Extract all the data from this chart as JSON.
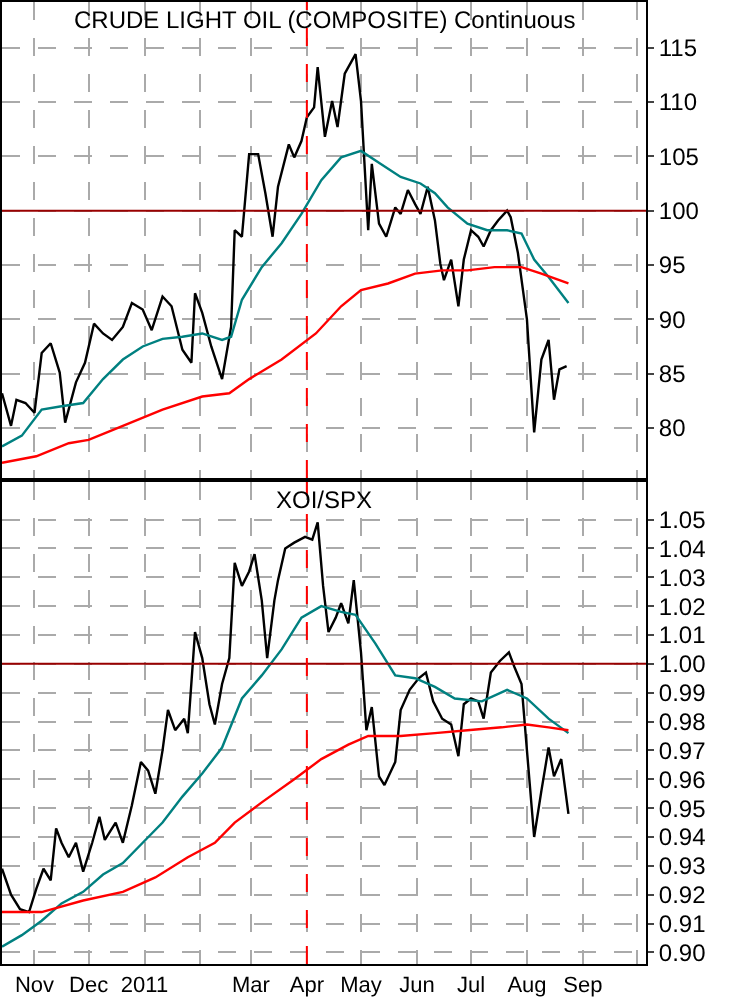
{
  "chart_data": [
    {
      "type": "line",
      "title": "CRUDE LIGHT OIL (COMPOSITE) Continuous",
      "xlim": [
        "2010-10-14",
        "2011-10-06"
      ],
      "ylim": [
        75.4,
        119.2
      ],
      "yticks": [
        80,
        85,
        90,
        95,
        100,
        105,
        110,
        115
      ],
      "xticks": [
        {
          "value": "2010-11-01",
          "label": null
        },
        {
          "value": "2010-12-01",
          "label": null
        },
        {
          "value": "2011-01-01",
          "label": null
        },
        {
          "value": "2011-02-01",
          "label": null
        },
        {
          "value": "2011-03-01",
          "label": null
        },
        {
          "value": "2011-04-01",
          "label": null
        },
        {
          "value": "2011-05-01",
          "label": null
        },
        {
          "value": "2011-06-01",
          "label": null
        },
        {
          "value": "2011-07-01",
          "label": null
        },
        {
          "value": "2011-08-01",
          "label": null
        },
        {
          "value": "2011-09-01",
          "label": null
        },
        {
          "value": "2011-10-01",
          "label": null
        }
      ],
      "tick_labels": "y",
      "grid": true,
      "marker": "none",
      "line_style": "solid",
      "ref_lines": [
        {
          "axis": "y",
          "value": 100,
          "color": "#990000",
          "line_style": "solid"
        },
        {
          "axis": "x",
          "value": "2011-04-01",
          "color": "#ff0000",
          "line_style": "dashed"
        }
      ],
      "series": [
        {
          "color": "#000000",
          "x": [
            "2010-10-14",
            "2010-10-19",
            "2010-10-22",
            "2010-10-27",
            "2010-11-01",
            "2010-11-05",
            "2010-11-10",
            "2010-11-15",
            "2010-11-18",
            "2010-11-24",
            "2010-11-29",
            "2010-12-04",
            "2010-12-09",
            "2010-12-14",
            "2010-12-20",
            "2010-12-25",
            "2010-12-31",
            "2011-01-05",
            "2011-01-11",
            "2011-01-16",
            "2011-01-22",
            "2011-01-27",
            "2011-01-29",
            "2011-02-02",
            "2011-02-07",
            "2011-02-13",
            "2011-02-18",
            "2011-02-20",
            "2011-02-24",
            "2011-02-28",
            "2011-03-05",
            "2011-03-09",
            "2011-03-13",
            "2011-03-16",
            "2011-03-22",
            "2011-03-25",
            "2011-03-29",
            "2011-04-01",
            "2011-04-05",
            "2011-04-07",
            "2011-04-11",
            "2011-04-15",
            "2011-04-18",
            "2011-04-22",
            "2011-04-28",
            "2011-05-01",
            "2011-05-05",
            "2011-05-07",
            "2011-05-11",
            "2011-05-15",
            "2011-05-20",
            "2011-05-23",
            "2011-05-27",
            "2011-05-31",
            "2011-06-03",
            "2011-06-07",
            "2011-06-11",
            "2011-06-14",
            "2011-06-16",
            "2011-06-20",
            "2011-06-24",
            "2011-06-27",
            "2011-07-01",
            "2011-07-05",
            "2011-07-08",
            "2011-07-12",
            "2011-07-16",
            "2011-07-21",
            "2011-07-23",
            "2011-07-27",
            "2011-08-01",
            "2011-08-05",
            "2011-08-09",
            "2011-08-13",
            "2011-08-16",
            "2011-08-19",
            "2011-08-23"
          ],
          "values": [
            83.2,
            80.2,
            82.6,
            82.3,
            81.4,
            86.9,
            87.8,
            85.1,
            80.5,
            84.2,
            86,
            89.6,
            88.7,
            88.1,
            89.3,
            91.5,
            90.9,
            89,
            92.1,
            91.2,
            87.2,
            86,
            92.4,
            90.6,
            87.5,
            84.5,
            89.3,
            98.2,
            97.6,
            105.2,
            105.2,
            101.6,
            97.6,
            102.2,
            106.1,
            104.9,
            106.4,
            108.6,
            109.5,
            113.2,
            106.8,
            110.1,
            107.7,
            112.6,
            114.4,
            110.1,
            98.2,
            104.3,
            98.8,
            97.6,
            100.3,
            99.7,
            101.9,
            100.6,
            99.7,
            102.2,
            99.1,
            95.1,
            93.6,
            95.5,
            91.2,
            95.5,
            98.2,
            97.6,
            96.7,
            98.2,
            99.1,
            100,
            99.4,
            96.1,
            90,
            79.6,
            86.3,
            88.1,
            82.6,
            85.4,
            85.7
          ]
        },
        {
          "color": "#008080",
          "x": [
            "2010-10-14",
            "2010-10-25",
            "2010-11-05",
            "2010-11-16",
            "2010-11-28",
            "2010-12-09",
            "2010-12-20",
            "2010-12-31",
            "2011-01-11",
            "2011-01-22",
            "2011-02-02",
            "2011-02-13",
            "2011-02-18",
            "2011-02-24",
            "2011-03-07",
            "2011-03-18",
            "2011-03-29",
            "2011-04-09",
            "2011-04-20",
            "2011-05-01",
            "2011-05-12",
            "2011-05-23",
            "2011-06-03",
            "2011-06-11",
            "2011-06-18",
            "2011-06-29",
            "2011-07-10",
            "2011-07-21",
            "2011-07-29",
            "2011-08-05",
            "2011-08-13",
            "2011-08-24"
          ],
          "values": [
            78.3,
            79.3,
            81.7,
            82,
            82.3,
            84.5,
            86.3,
            87.5,
            88.2,
            88.4,
            88.7,
            88.1,
            88.4,
            91.8,
            94.8,
            97,
            99.7,
            102.8,
            104.9,
            105.5,
            104.3,
            103.1,
            102.5,
            101.6,
            100.3,
            98.8,
            98.2,
            98.2,
            97.9,
            95.5,
            93.9,
            91.5
          ]
        },
        {
          "color": "#ff0000",
          "x": [
            "2010-10-14",
            "2010-11-02",
            "2010-11-20",
            "2010-12-01",
            "2010-12-20",
            "2011-01-11",
            "2011-02-02",
            "2011-02-17",
            "2011-02-28",
            "2011-03-18",
            "2011-04-06",
            "2011-04-20",
            "2011-05-01",
            "2011-05-16",
            "2011-05-31",
            "2011-06-15",
            "2011-06-29",
            "2011-07-14",
            "2011-07-29",
            "2011-08-09",
            "2011-08-24"
          ],
          "values": [
            76.8,
            77.4,
            78.6,
            78.9,
            80.2,
            81.7,
            82.9,
            83.2,
            84.5,
            86.3,
            88.7,
            91.2,
            92.7,
            93.3,
            94.2,
            94.5,
            94.5,
            94.8,
            94.8,
            94.2,
            93.3
          ]
        }
      ]
    },
    {
      "type": "line",
      "title": "XOI/SPX",
      "xlim": [
        "2010-10-14",
        "2011-10-06"
      ],
      "ylim": [
        0.896,
        1.063
      ],
      "yticks": [
        {
          "value": 0.9,
          "label": "0.90"
        },
        0.91,
        0.92,
        0.93,
        0.94,
        0.95,
        0.96,
        0.97,
        0.98,
        0.99,
        {
          "value": 1,
          "label": "1.00"
        },
        1.01,
        1.02,
        1.03,
        1.04,
        1.05
      ],
      "xticks": [
        {
          "value": "2010-11-01",
          "label": "Nov"
        },
        {
          "value": "2010-12-01",
          "label": "Dec"
        },
        {
          "value": "2011-01-01",
          "label": "2011"
        },
        {
          "value": "2011-02-01",
          "label": null
        },
        {
          "value": "2011-03-01",
          "label": "Mar"
        },
        {
          "value": "2011-04-01",
          "label": "Apr"
        },
        {
          "value": "2011-05-01",
          "label": "May"
        },
        {
          "value": "2011-06-01",
          "label": "Jun"
        },
        {
          "value": "2011-07-01",
          "label": "Jul"
        },
        {
          "value": "2011-08-01",
          "label": "Aug"
        },
        {
          "value": "2011-09-01",
          "label": "Sep"
        },
        {
          "value": "2011-10-01",
          "label": null
        }
      ],
      "grid": true,
      "marker": "none",
      "line_style": "solid",
      "ref_lines": [
        {
          "axis": "y",
          "value": 1.0,
          "color": "#990000",
          "line_style": "solid"
        },
        {
          "axis": "x",
          "value": "2011-04-01",
          "color": "#ff0000",
          "line_style": "dashed"
        }
      ],
      "series": [
        {
          "color": "#000000",
          "x": [
            "2010-10-14",
            "2010-10-19",
            "2010-10-24",
            "2010-10-29",
            "2010-11-02",
            "2010-11-06",
            "2010-11-10",
            "2010-11-13",
            "2010-11-16",
            "2010-11-20",
            "2010-11-24",
            "2010-11-28",
            "2010-12-03",
            "2010-12-07",
            "2010-12-10",
            "2010-12-16",
            "2010-12-20",
            "2010-12-25",
            "2010-12-30",
            "2011-01-03",
            "2011-01-07",
            "2011-01-11",
            "2011-01-14",
            "2011-01-18",
            "2011-01-23",
            "2011-01-25",
            "2011-01-29",
            "2011-02-02",
            "2011-02-06",
            "2011-02-09",
            "2011-02-13",
            "2011-02-17",
            "2011-02-20",
            "2011-02-24",
            "2011-02-28",
            "2011-03-03",
            "2011-03-07",
            "2011-03-10",
            "2011-03-14",
            "2011-03-16",
            "2011-03-20",
            "2011-03-25",
            "2011-03-31",
            "2011-04-04",
            "2011-04-07",
            "2011-04-10",
            "2011-04-13",
            "2011-04-17",
            "2011-04-20",
            "2011-04-24",
            "2011-04-27",
            "2011-05-01",
            "2011-05-04",
            "2011-05-07",
            "2011-05-11",
            "2011-05-14",
            "2011-05-20",
            "2011-05-23",
            "2011-05-28",
            "2011-06-02",
            "2011-06-06",
            "2011-06-10",
            "2011-06-15",
            "2011-06-20",
            "2011-06-24",
            "2011-06-27",
            "2011-07-01",
            "2011-07-05",
            "2011-07-08",
            "2011-07-12",
            "2011-07-17",
            "2011-07-22",
            "2011-07-25",
            "2011-07-29",
            "2011-08-01",
            "2011-08-05",
            "2011-08-09",
            "2011-08-13",
            "2011-08-16",
            "2011-08-20",
            "2011-08-24"
          ],
          "values": [
            0.929,
            0.92,
            0.915,
            0.914,
            0.922,
            0.929,
            0.925,
            0.943,
            0.938,
            0.933,
            0.938,
            0.928,
            0.938,
            0.947,
            0.939,
            0.945,
            0.938,
            0.951,
            0.966,
            0.963,
            0.955,
            0.97,
            0.984,
            0.977,
            0.981,
            0.976,
            1.011,
            1.002,
            0.986,
            0.979,
            0.993,
            1.002,
            1.035,
            1.027,
            1.032,
            1.038,
            1.022,
            1.002,
            1.022,
            1.029,
            1.04,
            1.042,
            1.044,
            1.043,
            1.049,
            1.027,
            1.011,
            1.016,
            1.021,
            1.014,
            1.029,
            1.004,
            0.977,
            0.985,
            0.961,
            0.958,
            0.966,
            0.984,
            0.991,
            0.995,
            0.997,
            0.987,
            0.981,
            0.979,
            0.968,
            0.986,
            0.988,
            0.987,
            0.981,
            0.997,
            1.001,
            1.004,
            0.999,
            0.993,
            0.97,
            0.94,
            0.956,
            0.971,
            0.961,
            0.967,
            0.948
          ]
        },
        {
          "color": "#008080",
          "x": [
            "2010-10-14",
            "2010-10-25",
            "2010-11-05",
            "2010-11-16",
            "2010-11-28",
            "2010-12-09",
            "2010-12-20",
            "2010-12-31",
            "2011-01-11",
            "2011-01-22",
            "2011-02-02",
            "2011-02-13",
            "2011-02-24",
            "2011-03-07",
            "2011-03-18",
            "2011-03-29",
            "2011-04-09",
            "2011-04-20",
            "2011-04-28",
            "2011-05-09",
            "2011-05-20",
            "2011-05-31",
            "2011-06-11",
            "2011-06-22",
            "2011-07-07",
            "2011-07-21",
            "2011-08-01",
            "2011-08-13",
            "2011-08-24"
          ],
          "values": [
            0.902,
            0.906,
            0.911,
            0.917,
            0.921,
            0.927,
            0.931,
            0.938,
            0.945,
            0.954,
            0.962,
            0.971,
            0.988,
            0.996,
            1.005,
            1.016,
            1.02,
            1.018,
            1.017,
            1.007,
            0.996,
            0.995,
            0.992,
            0.988,
            0.987,
            0.991,
            0.988,
            0.981,
            0.976
          ]
        },
        {
          "color": "#ff0000",
          "x": [
            "2010-10-14",
            "2010-11-05",
            "2010-11-28",
            "2010-12-20",
            "2011-01-07",
            "2011-01-25",
            "2011-02-09",
            "2011-02-20",
            "2011-03-07",
            "2011-03-25",
            "2011-04-09",
            "2011-04-24",
            "2011-05-05",
            "2011-05-23",
            "2011-06-11",
            "2011-06-29",
            "2011-07-18",
            "2011-08-01",
            "2011-08-13",
            "2011-08-24"
          ],
          "values": [
            0.914,
            0.914,
            0.918,
            0.921,
            0.926,
            0.933,
            0.938,
            0.945,
            0.952,
            0.96,
            0.967,
            0.972,
            0.975,
            0.975,
            0.976,
            0.977,
            0.978,
            0.979,
            0.978,
            0.977
          ]
        }
      ]
    }
  ]
}
